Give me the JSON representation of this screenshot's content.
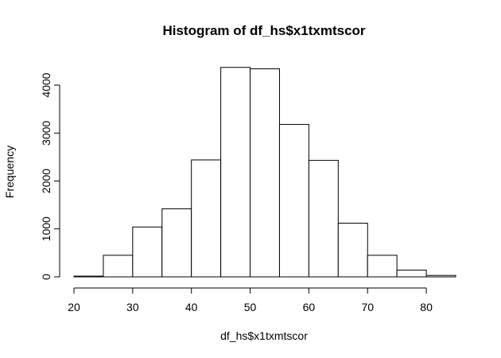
{
  "chart_data": {
    "type": "bar",
    "subtype": "histogram",
    "title": "Histogram of df_hs$x1txmtscor",
    "xlabel": "df_hs$x1txmtscor",
    "ylabel": "Frequency",
    "bin_edges": [
      20,
      25,
      30,
      35,
      40,
      45,
      50,
      55,
      60,
      65,
      70,
      75,
      80,
      85
    ],
    "values": [
      15,
      450,
      1040,
      1420,
      2440,
      4370,
      4340,
      3180,
      2430,
      1120,
      450,
      140,
      30
    ],
    "xlim": [
      20,
      85
    ],
    "ylim": [
      0,
      4400
    ],
    "x_ticks": [
      20,
      30,
      40,
      50,
      60,
      70,
      80
    ],
    "y_ticks": [
      0,
      1000,
      2000,
      3000,
      4000
    ],
    "bar_fill": "#ffffff",
    "bar_stroke": "#000000",
    "grid": false,
    "legend": "none"
  }
}
